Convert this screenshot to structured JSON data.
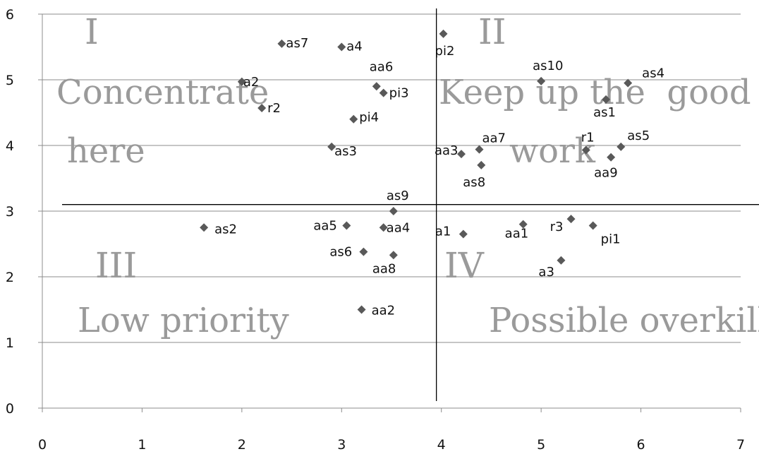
{
  "chart_data": {
    "type": "scatter",
    "title": "",
    "xlabel": "",
    "ylabel": "",
    "xlim": [
      0,
      7
    ],
    "ylim": [
      0,
      6
    ],
    "x_ticks": [
      0,
      1,
      2,
      3,
      4,
      5,
      6,
      7
    ],
    "y_ticks": [
      0,
      1,
      2,
      3,
      4,
      5,
      6
    ],
    "grid": "horizontal",
    "marker": "diamond",
    "marker_color": "#595959",
    "divider_lines": {
      "x": 3.95,
      "y": 3.1,
      "color": "#000000"
    },
    "quadrants": [
      {
        "numeral": "I",
        "lines": [
          "Concentrate",
          "here"
        ]
      },
      {
        "numeral": "II",
        "lines": [
          "Keep up the  good",
          "work"
        ]
      },
      {
        "numeral": "III",
        "lines": [
          "Low priority"
        ]
      },
      {
        "numeral": "IV",
        "lines": [
          "Possible overkill"
        ]
      }
    ],
    "points": [
      {
        "label": "as7",
        "x": 2.4,
        "y": 5.55
      },
      {
        "label": "a4",
        "x": 3.0,
        "y": 5.5
      },
      {
        "label": "pi2",
        "x": 4.02,
        "y": 5.7
      },
      {
        "label": "aa6",
        "x": 3.35,
        "y": 4.9
      },
      {
        "label": "pi3",
        "x": 3.42,
        "y": 4.8
      },
      {
        "label": "a2",
        "x": 2.0,
        "y": 4.97
      },
      {
        "label": "r2",
        "x": 2.2,
        "y": 4.57
      },
      {
        "label": "pi4",
        "x": 3.12,
        "y": 4.4
      },
      {
        "label": "as3",
        "x": 2.9,
        "y": 3.98
      },
      {
        "label": "as10",
        "x": 5.0,
        "y": 4.98
      },
      {
        "label": "as4",
        "x": 5.87,
        "y": 4.95
      },
      {
        "label": "as1",
        "x": 5.65,
        "y": 4.7
      },
      {
        "label": "aa3",
        "x": 4.2,
        "y": 3.87
      },
      {
        "label": "aa7",
        "x": 4.38,
        "y": 3.94
      },
      {
        "label": "as8",
        "x": 4.4,
        "y": 3.7
      },
      {
        "label": "r1",
        "x": 5.45,
        "y": 3.93
      },
      {
        "label": "as5",
        "x": 5.8,
        "y": 3.98
      },
      {
        "label": "aa9",
        "x": 5.7,
        "y": 3.82
      },
      {
        "label": "as9",
        "x": 3.52,
        "y": 3.0
      },
      {
        "label": "as2",
        "x": 1.62,
        "y": 2.75
      },
      {
        "label": "aa5",
        "x": 3.05,
        "y": 2.78
      },
      {
        "label": "aa4",
        "x": 3.42,
        "y": 2.75
      },
      {
        "label": "a1",
        "x": 4.22,
        "y": 2.65
      },
      {
        "label": "aa1",
        "x": 4.82,
        "y": 2.8
      },
      {
        "label": "r3",
        "x": 5.3,
        "y": 2.88
      },
      {
        "label": "pi1",
        "x": 5.52,
        "y": 2.78
      },
      {
        "label": "as6",
        "x": 3.22,
        "y": 2.38
      },
      {
        "label": "aa8",
        "x": 3.52,
        "y": 2.33
      },
      {
        "label": "a3",
        "x": 5.2,
        "y": 2.25
      },
      {
        "label": "aa2",
        "x": 3.2,
        "y": 1.5
      }
    ]
  }
}
